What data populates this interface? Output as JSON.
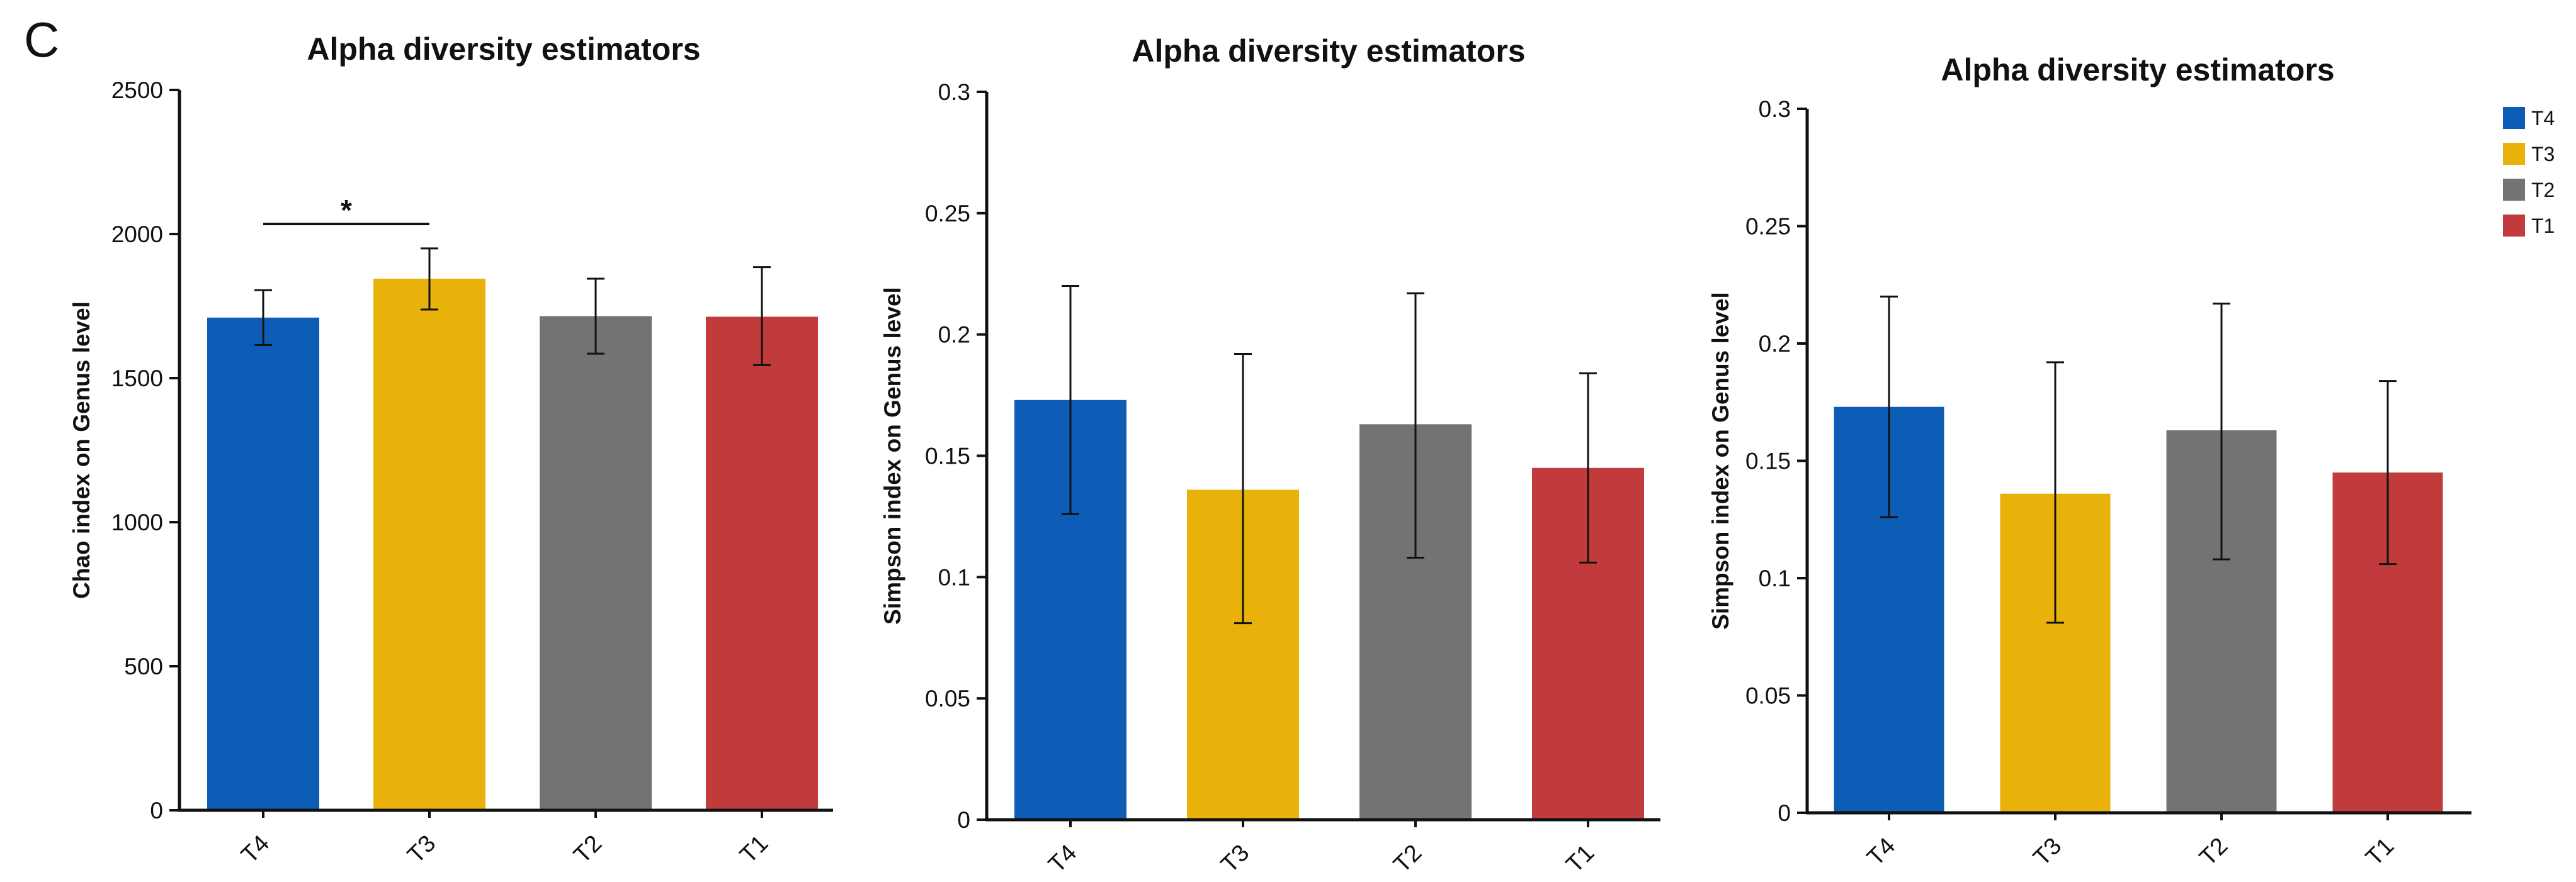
{
  "panel_label": "C",
  "legend": {
    "entries": [
      {
        "label": "T4",
        "color": "#0d5cb6"
      },
      {
        "label": "T3",
        "color": "#e8b20b"
      },
      {
        "label": "T2",
        "color": "#737373"
      },
      {
        "label": "T1",
        "color": "#c13b3d"
      }
    ]
  },
  "chart_data": [
    {
      "type": "bar",
      "title": "Alpha diversity estimators",
      "xlabel": "",
      "ylabel": "Chao index on Genus level",
      "categories": [
        "T4",
        "T3",
        "T2",
        "T1"
      ],
      "values": [
        1710,
        1845,
        1715,
        1713
      ],
      "error_low": [
        1615,
        1738,
        1585,
        1545
      ],
      "error_high": [
        1805,
        1950,
        1845,
        1885
      ],
      "colors": [
        "#0d5cb6",
        "#e8b20b",
        "#737373",
        "#c13b3d"
      ],
      "ylim": [
        0,
        2500
      ],
      "yticks": [
        0,
        500,
        1000,
        1500,
        2000,
        2500
      ],
      "ytick_labels": [
        "0",
        "500",
        "1000",
        "1500",
        "2000",
        "2500"
      ],
      "significance": [
        {
          "from": "T4",
          "to": "T3",
          "label": "*",
          "y": 2035
        }
      ]
    },
    {
      "type": "bar",
      "title": "Alpha diversity estimators",
      "xlabel": "",
      "ylabel": "Simpson index on Genus level",
      "categories": [
        "T4",
        "T3",
        "T2",
        "T1"
      ],
      "values": [
        0.173,
        0.136,
        0.163,
        0.145
      ],
      "error_low": [
        0.126,
        0.081,
        0.108,
        0.106
      ],
      "error_high": [
        0.22,
        0.192,
        0.217,
        0.184
      ],
      "colors": [
        "#0d5cb6",
        "#e8b20b",
        "#737373",
        "#c13b3d"
      ],
      "ylim": [
        0,
        0.3
      ],
      "yticks": [
        0,
        0.05,
        0.1,
        0.15,
        0.2,
        0.25,
        0.3
      ],
      "ytick_labels": [
        "0",
        "0.05",
        "0.1",
        "0.15",
        "0.2",
        "0.25",
        "0.3"
      ],
      "significance": []
    },
    {
      "type": "bar",
      "title": "Alpha diversity estimators",
      "xlabel": "",
      "ylabel": "Simpson index on Genus level",
      "categories": [
        "T4",
        "T3",
        "T2",
        "T1"
      ],
      "values": [
        0.173,
        0.136,
        0.163,
        0.145
      ],
      "error_low": [
        0.126,
        0.081,
        0.108,
        0.106
      ],
      "error_high": [
        0.22,
        0.192,
        0.217,
        0.184
      ],
      "colors": [
        "#0d5cb6",
        "#e8b20b",
        "#737373",
        "#c13b3d"
      ],
      "ylim": [
        0,
        0.3
      ],
      "yticks": [
        0,
        0.05,
        0.1,
        0.15,
        0.2,
        0.25,
        0.3
      ],
      "ytick_labels": [
        "0",
        "0.05",
        "0.1",
        "0.15",
        "0.2",
        "0.25",
        "0.3"
      ],
      "significance": []
    }
  ]
}
